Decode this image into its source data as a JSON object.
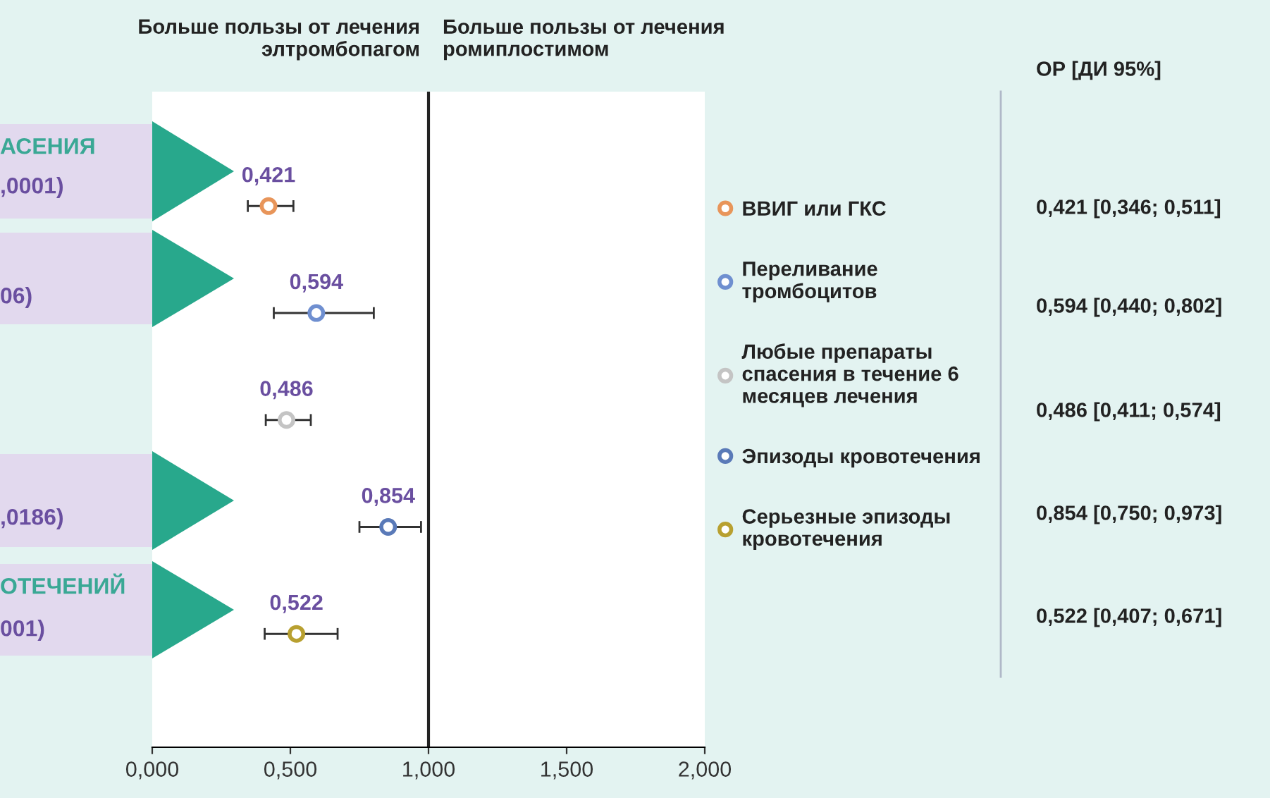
{
  "chart_data": {
    "type": "scatter",
    "orientation": "horizontal",
    "categories": [
      null,
      null,
      null,
      null,
      null
    ],
    "series": [
      {
        "name": "ВВИГ или ГКС",
        "color": "#e8955a",
        "values": [
          0.421,
          null,
          null,
          null,
          null
        ],
        "errors": [
          [
            0.346,
            0.511
          ],
          null,
          null,
          null,
          null
        ],
        "value_labels": [
          "0,421",
          null,
          null,
          null,
          null
        ]
      },
      {
        "name": "Переливание тромбоцитов",
        "color": "#6f8fd0",
        "values": [
          null,
          0.594,
          null,
          null,
          null
        ],
        "errors": [
          null,
          [
            0.44,
            0.802
          ],
          null,
          null,
          null
        ],
        "value_labels": [
          null,
          "0,594",
          null,
          null,
          null
        ]
      },
      {
        "name": "Любые препараты спасения в течение 6 месяцев лечения",
        "color": "#c4c4c4",
        "values": [
          null,
          null,
          0.486,
          null,
          null
        ],
        "errors": [
          null,
          null,
          [
            0.411,
            0.574
          ],
          null,
          null
        ],
        "value_labels": [
          null,
          null,
          "0,486",
          null,
          null
        ]
      },
      {
        "name": "Эпизоды кровотечения",
        "color": "#5a7ab8",
        "values": [
          null,
          null,
          null,
          0.854,
          null
        ],
        "errors": [
          null,
          null,
          null,
          [
            0.75,
            0.973
          ],
          null
        ],
        "value_labels": [
          null,
          null,
          null,
          "0,854",
          null
        ]
      },
      {
        "name": "Серьезные эпизоды кровотечения",
        "color": "#b8a030",
        "values": [
          null,
          null,
          null,
          null,
          0.522
        ],
        "errors": [
          null,
          null,
          null,
          null,
          [
            0.407,
            0.671
          ]
        ],
        "value_labels": [
          null,
          null,
          null,
          null,
          "0,522"
        ]
      }
    ],
    "xlim": [
      0,
      2
    ],
    "xticks": [
      {
        "value": 0,
        "label": "0,000"
      },
      {
        "value": 0.5,
        "label": "0,500"
      },
      {
        "value": 1,
        "label": "1,000"
      },
      {
        "value": 1.5,
        "label": "1,500"
      },
      {
        "value": 2,
        "label": "2,000"
      }
    ],
    "ref_lines": [
      {
        "axis": "x",
        "value": 1,
        "color": "#222222"
      }
    ],
    "marker": "circle",
    "legend": "right",
    "grid": false,
    "annotations": [
      "Больше пользы от лечения элтромбопагом",
      "Больше пользы от лечения ромиплостимом",
      "ОР [ДИ 95%]",
      "0,421 [0,346; 0,511]",
      "0,594 [0,440; 0,802]",
      "0,486 [0,411; 0,574]",
      "0,854 [0,750; 0,973]",
      "0,522 [0,407; 0,671]",
      "АСЕНИЯ",
      ",0001)",
      "06)",
      ",0186)",
      "ОТЕЧЕНИЙ",
      "001)"
    ]
  }
}
